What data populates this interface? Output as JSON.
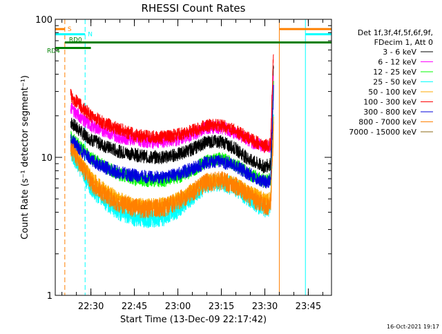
{
  "chart_data": {
    "type": "line",
    "title": "RHESSI Count Rates",
    "xlabel": "Start Time (13-Dec-09 22:17:42)",
    "ylabel": "Count Rate (s⁻¹ detector segment⁻¹)",
    "y_scale": "log",
    "ylim": [
      1,
      100
    ],
    "xlim": [
      "22:17:42",
      "23:53:00"
    ],
    "x_tick_labels": [
      "22:30",
      "22:45",
      "23:00",
      "23:15",
      "23:30",
      "23:45"
    ],
    "y_tick_labels": [
      "1",
      "10",
      "100"
    ],
    "grid": false,
    "legend_position": "right",
    "legend_header": [
      "Det 1f,3f,4f,5f,6f,9f,",
      "FDecim 1, Att 0"
    ],
    "series": [
      {
        "name": "3 - 6 keV",
        "color": "#000000",
        "x": [
          "22:23",
          "22:27",
          "22:30",
          "22:35",
          "22:40",
          "22:45",
          "22:50",
          "22:55",
          "23:00",
          "23:05",
          "23:10",
          "23:15",
          "23:20",
          "23:25",
          "23:30",
          "23:32",
          "23:33"
        ],
        "values": [
          18,
          15,
          13.5,
          12,
          11,
          10.5,
          10,
          10,
          10.5,
          11.5,
          13,
          13,
          11.5,
          9.5,
          8.5,
          9,
          45
        ]
      },
      {
        "name": "6 - 12 keV",
        "color": "#ff00ff",
        "x": [
          "22:23",
          "22:27",
          "22:30",
          "22:35",
          "22:40",
          "22:45",
          "22:50",
          "22:55",
          "23:00",
          "23:05",
          "23:10",
          "23:15",
          "23:20",
          "23:25",
          "23:30",
          "23:32",
          "23:33"
        ],
        "values": [
          23,
          19,
          17,
          15.5,
          14,
          13.5,
          13,
          13,
          13.5,
          14.5,
          16.5,
          16.5,
          15,
          13,
          12,
          12,
          40
        ]
      },
      {
        "name": "12 - 25 keV",
        "color": "#00ff00",
        "x": [
          "22:23",
          "22:27",
          "22:30",
          "22:35",
          "22:40",
          "22:45",
          "22:50",
          "22:55",
          "23:00",
          "23:05",
          "23:10",
          "23:15",
          "23:20",
          "23:25",
          "23:30",
          "23:32",
          "23:33"
        ],
        "values": [
          14,
          11.5,
          10,
          8.5,
          7.5,
          7,
          6.8,
          6.8,
          7.2,
          8,
          9.5,
          9.8,
          8.8,
          7.5,
          6.8,
          7,
          35
        ]
      },
      {
        "name": "25 - 50 keV",
        "color": "#00ffff",
        "x": [
          "22:23",
          "22:27",
          "22:30",
          "22:35",
          "22:40",
          "22:45",
          "22:50",
          "22:55",
          "23:00",
          "23:05",
          "23:10",
          "23:15",
          "23:20",
          "23:25",
          "23:30",
          "23:32",
          "23:33"
        ],
        "values": [
          11,
          8,
          6,
          4.8,
          4,
          3.7,
          3.6,
          3.7,
          4.2,
          5.2,
          6.4,
          6.6,
          6,
          5,
          4.2,
          4.3,
          20
        ]
      },
      {
        "name": "50 - 100 keV",
        "color": "#ffaa00",
        "x": [
          "22:23",
          "22:27",
          "22:30",
          "22:35",
          "22:40",
          "22:45",
          "22:50",
          "22:55",
          "23:00",
          "23:05",
          "23:10",
          "23:15",
          "23:20",
          "23:25",
          "23:30",
          "23:32",
          "23:33"
        ],
        "values": [
          12,
          9,
          7.2,
          5.8,
          5,
          4.6,
          4.5,
          4.6,
          5,
          5.8,
          6.8,
          7,
          6.4,
          5.6,
          5,
          5,
          18
        ]
      },
      {
        "name": "100 - 300 keV",
        "color": "#ff0000",
        "x": [
          "22:23",
          "22:27",
          "22:30",
          "22:35",
          "22:40",
          "22:45",
          "22:50",
          "22:55",
          "23:00",
          "23:05",
          "23:10",
          "23:15",
          "23:20",
          "23:25",
          "23:30",
          "23:32",
          "23:33"
        ],
        "values": [
          28,
          23,
          20,
          17.5,
          16,
          14.5,
          14,
          14,
          14.5,
          15.5,
          17,
          17,
          15.5,
          13.5,
          12,
          12.5,
          60
        ]
      },
      {
        "name": "300 - 800 keV",
        "color": "#0000dd",
        "x": [
          "22:23",
          "22:27",
          "22:30",
          "22:35",
          "22:40",
          "22:45",
          "22:50",
          "22:55",
          "23:00",
          "23:05",
          "23:10",
          "23:15",
          "23:20",
          "23:25",
          "23:30",
          "23:32",
          "23:33"
        ],
        "values": [
          13.5,
          11,
          9.6,
          8.4,
          7.7,
          7.4,
          7.2,
          7.2,
          7.6,
          8.3,
          9.2,
          9.4,
          8.6,
          7.5,
          6.6,
          6.8,
          30
        ]
      },
      {
        "name": "800 - 7000 keV",
        "color": "#ff8000",
        "x": [
          "22:23",
          "22:27",
          "22:30",
          "22:35",
          "22:40",
          "22:45",
          "22:50",
          "22:55",
          "23:00",
          "23:05",
          "23:10",
          "23:15",
          "23:20",
          "23:25",
          "23:30",
          "23:32",
          "23:33"
        ],
        "values": [
          11.5,
          8.5,
          6.6,
          5.3,
          4.6,
          4.3,
          4.2,
          4.3,
          4.8,
          5.6,
          6.6,
          6.8,
          6.2,
          5.2,
          4.4,
          4.5,
          16
        ]
      },
      {
        "name": "7000 - 15000 keV",
        "color": "#8b6914",
        "x": [],
        "values": []
      }
    ],
    "annotations": [
      {
        "label": "S",
        "color": "#ff8000",
        "y": 85,
        "x_start": "22:17:42",
        "x_end": "22:21:00"
      },
      {
        "label": "N",
        "color": "#00ffff",
        "y": 78,
        "x_start": "22:17:42",
        "x_end": "22:28:00"
      },
      {
        "label": "RD0",
        "color": "#008000",
        "y": 68,
        "x_start": "22:21:00",
        "x_end": "23:53:00"
      },
      {
        "label": "RD4",
        "color": "#008000",
        "y": 62,
        "x_start": "22:17:42",
        "x_end": "22:30:00"
      },
      {
        "label": "",
        "color": "#ff8000",
        "y": 85,
        "x_start": "23:35:00",
        "x_end": "23:53:00"
      },
      {
        "label": "",
        "color": "#00ffff",
        "y": 78,
        "x_start": "23:44:00",
        "x_end": "23:53:00"
      }
    ],
    "vertical_markers": [
      {
        "x": "22:17:42",
        "color": "#00ffff",
        "style": "solid"
      },
      {
        "x": "22:21:00",
        "color": "#ff8000",
        "style": "dashed"
      },
      {
        "x": "22:28:00",
        "color": "#00ffff",
        "style": "dashed"
      },
      {
        "x": "23:35:00",
        "color": "#ff8000",
        "style": "solid"
      },
      {
        "x": "23:44:00",
        "color": "#00ffff",
        "style": "solid"
      },
      {
        "x": "23:53:00",
        "color": "#ff8000",
        "style": "dashed"
      },
      {
        "x": "23:53:00",
        "color": "#00ffff",
        "style": "dashed"
      }
    ]
  },
  "footer": {
    "timestamp": "16-Oct-2021 19:17"
  },
  "colors": {
    "axis": "#000000",
    "background": "#ffffff"
  }
}
